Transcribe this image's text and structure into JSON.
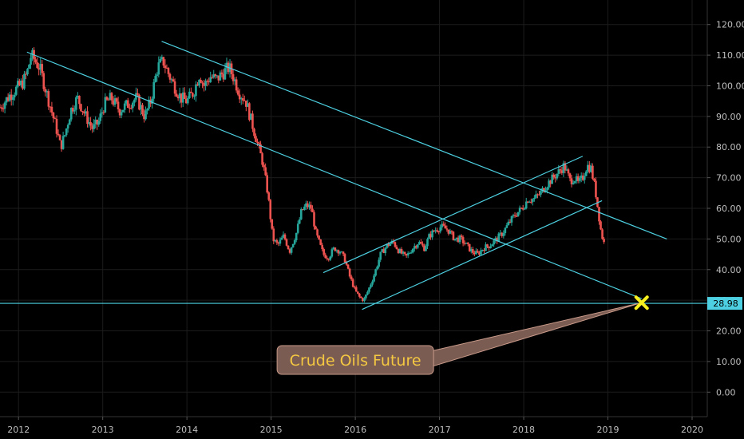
{
  "chart_data": {
    "type": "candlestick",
    "y_axis": {
      "range": [
        -8,
        128
      ],
      "ticks": [
        "120.00",
        "110.00",
        "100.00",
        "90.00",
        "80.00",
        "70.00",
        "60.00",
        "50.00",
        "40.00",
        "30.00",
        "20.00",
        "10.00",
        "0.00"
      ]
    },
    "x_axis": {
      "range": [
        2011.78,
        2020.18
      ],
      "ticks": [
        "2012",
        "2013",
        "2014",
        "2015",
        "2016",
        "2017",
        "2018",
        "2019",
        "2020"
      ]
    },
    "price_path": [
      [
        2011.78,
        93
      ],
      [
        2011.9,
        97
      ],
      [
        2012.05,
        101
      ],
      [
        2012.1,
        104
      ],
      [
        2012.15,
        110
      ],
      [
        2012.25,
        106
      ],
      [
        2012.35,
        96
      ],
      [
        2012.45,
        86
      ],
      [
        2012.5,
        80
      ],
      [
        2012.55,
        84
      ],
      [
        2012.62,
        92
      ],
      [
        2012.7,
        96
      ],
      [
        2012.8,
        90
      ],
      [
        2012.88,
        86
      ],
      [
        2012.95,
        88
      ],
      [
        2013.02,
        94
      ],
      [
        2013.1,
        96
      ],
      [
        2013.2,
        92
      ],
      [
        2013.3,
        94
      ],
      [
        2013.4,
        96
      ],
      [
        2013.5,
        90
      ],
      [
        2013.57,
        95
      ],
      [
        2013.65,
        106
      ],
      [
        2013.72,
        108
      ],
      [
        2013.78,
        104
      ],
      [
        2013.85,
        100
      ],
      [
        2013.93,
        96
      ],
      [
        2014.0,
        95
      ],
      [
        2014.08,
        98
      ],
      [
        2014.15,
        104
      ],
      [
        2014.2,
        100
      ],
      [
        2014.28,
        103
      ],
      [
        2014.35,
        102
      ],
      [
        2014.42,
        104
      ],
      [
        2014.5,
        106
      ],
      [
        2014.55,
        103
      ],
      [
        2014.62,
        98
      ],
      [
        2014.7,
        95
      ],
      [
        2014.78,
        87
      ],
      [
        2014.85,
        80
      ],
      [
        2014.9,
        75
      ],
      [
        2014.96,
        65
      ],
      [
        2015.02,
        50
      ],
      [
        2015.08,
        48
      ],
      [
        2015.15,
        51
      ],
      [
        2015.22,
        46
      ],
      [
        2015.3,
        52
      ],
      [
        2015.36,
        59
      ],
      [
        2015.42,
        61
      ],
      [
        2015.48,
        60
      ],
      [
        2015.53,
        52
      ],
      [
        2015.58,
        48
      ],
      [
        2015.62,
        45
      ],
      [
        2015.68,
        44
      ],
      [
        2015.75,
        47
      ],
      [
        2015.82,
        46
      ],
      [
        2015.88,
        43
      ],
      [
        2015.93,
        38
      ],
      [
        2016.0,
        33
      ],
      [
        2016.05,
        31
      ],
      [
        2016.1,
        30
      ],
      [
        2016.15,
        33
      ],
      [
        2016.22,
        38
      ],
      [
        2016.3,
        45
      ],
      [
        2016.38,
        48
      ],
      [
        2016.45,
        49
      ],
      [
        2016.52,
        46
      ],
      [
        2016.6,
        44
      ],
      [
        2016.68,
        47
      ],
      [
        2016.75,
        49
      ],
      [
        2016.82,
        47
      ],
      [
        2016.88,
        51
      ],
      [
        2016.95,
        53
      ],
      [
        2017.02,
        54
      ],
      [
        2017.1,
        53
      ],
      [
        2017.18,
        50
      ],
      [
        2017.25,
        50
      ],
      [
        2017.32,
        48
      ],
      [
        2017.38,
        46
      ],
      [
        2017.45,
        45
      ],
      [
        2017.52,
        47
      ],
      [
        2017.6,
        48
      ],
      [
        2017.68,
        50
      ],
      [
        2017.75,
        52
      ],
      [
        2017.82,
        55
      ],
      [
        2017.9,
        58
      ],
      [
        2017.98,
        60
      ],
      [
        2018.05,
        63
      ],
      [
        2018.12,
        63
      ],
      [
        2018.2,
        65
      ],
      [
        2018.28,
        68
      ],
      [
        2018.35,
        70
      ],
      [
        2018.42,
        72
      ],
      [
        2018.48,
        74
      ],
      [
        2018.55,
        69
      ],
      [
        2018.6,
        70
      ],
      [
        2018.65,
        68
      ],
      [
        2018.7,
        70
      ],
      [
        2018.75,
        74
      ],
      [
        2018.8,
        73
      ],
      [
        2018.85,
        66
      ],
      [
        2018.88,
        60
      ],
      [
        2018.92,
        52
      ],
      [
        2018.97,
        47
      ]
    ],
    "trendlines": [
      {
        "from": [
          2012.1,
          111
        ],
        "to": [
          2019.4,
          30.5
        ]
      },
      {
        "from": [
          2013.7,
          114.5
        ],
        "to": [
          2019.7,
          50
        ]
      },
      {
        "from": [
          2015.62,
          39
        ],
        "to": [
          2018.7,
          77
        ]
      },
      {
        "from": [
          2016.08,
          27
        ],
        "to": [
          2018.93,
          62.5
        ]
      }
    ],
    "horizontal_line": {
      "y": 28.98,
      "label": "28.98"
    },
    "marker": {
      "type": "x",
      "x": 2019.4,
      "y": 29.2,
      "color": "#f7f01e"
    },
    "annotation": {
      "text": "Crude Oils Future",
      "x": 2016.0,
      "y": 10.5
    },
    "colors": {
      "up": "#26a69a",
      "down": "#ef5350",
      "trendline": "#4dd0e1",
      "grid": "#1c1c1c",
      "axis_text": "#bfbfbf",
      "note_bg": "#7a5c52",
      "note_text": "#f5c842",
      "note_border": "#c99a8a"
    }
  }
}
